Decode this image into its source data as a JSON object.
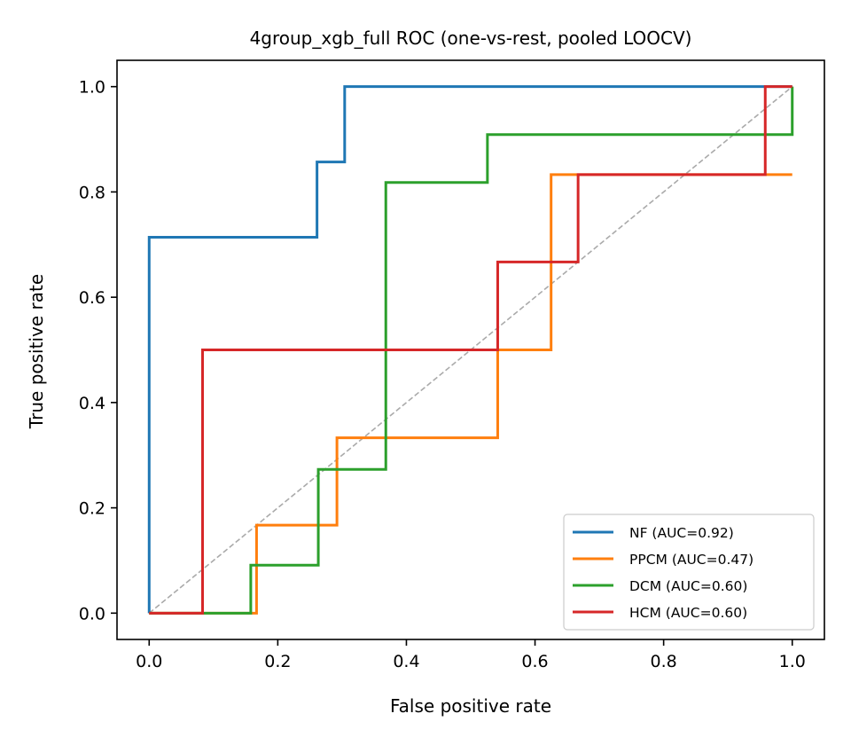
{
  "chart_data": {
    "type": "line",
    "title": "4group_xgb_full ROC (one-vs-rest, pooled LOOCV)",
    "xlabel": "False positive rate",
    "ylabel": "True positive rate",
    "xlim": [
      -0.05,
      1.05
    ],
    "ylim": [
      -0.05,
      1.05
    ],
    "xticks": [
      0.0,
      0.2,
      0.4,
      0.6,
      0.8,
      1.0
    ],
    "yticks": [
      0.0,
      0.2,
      0.4,
      0.6,
      0.8,
      1.0
    ],
    "xtick_labels": [
      "0.0",
      "0.2",
      "0.4",
      "0.6",
      "0.8",
      "1.0"
    ],
    "ytick_labels": [
      "0.0",
      "0.2",
      "0.4",
      "0.6",
      "0.8",
      "1.0"
    ],
    "grid": false,
    "legend_position": "lower-right",
    "chance_line": {
      "x": [
        0,
        1
      ],
      "y": [
        0,
        1
      ],
      "color": "#aaaaaa",
      "style": "dashed"
    },
    "series": [
      {
        "name": "NF (AUC=0.92)",
        "color": "#1f77b4",
        "x": [
          0,
          0,
          0.261,
          0.261,
          0.304,
          0.304,
          0.957,
          1.0
        ],
        "y": [
          0,
          0.714,
          0.714,
          0.857,
          0.857,
          1.0,
          1.0,
          1.0
        ]
      },
      {
        "name": "PPCM (AUC=0.47)",
        "color": "#ff7f0e",
        "x": [
          0,
          0.167,
          0.167,
          0.292,
          0.292,
          0.542,
          0.542,
          0.625,
          0.625,
          1.0
        ],
        "y": [
          0,
          0,
          0.167,
          0.167,
          0.333,
          0.333,
          0.5,
          0.5,
          0.833,
          0.833
        ]
      },
      {
        "name": "DCM (AUC=0.60)",
        "color": "#2ca02c",
        "x": [
          0,
          0.158,
          0.158,
          0.263,
          0.263,
          0.368,
          0.368,
          0.526,
          0.526,
          1.0,
          1.0
        ],
        "y": [
          0,
          0,
          0.091,
          0.091,
          0.273,
          0.273,
          0.818,
          0.818,
          0.909,
          0.909,
          1.0
        ]
      },
      {
        "name": "HCM (AUC=0.60)",
        "color": "#d62728",
        "x": [
          0,
          0.083,
          0.083,
          0.542,
          0.542,
          0.667,
          0.667,
          0.958,
          0.958,
          1.0
        ],
        "y": [
          0,
          0,
          0.5,
          0.5,
          0.667,
          0.667,
          0.833,
          0.833,
          1.0,
          1.0
        ]
      }
    ]
  }
}
